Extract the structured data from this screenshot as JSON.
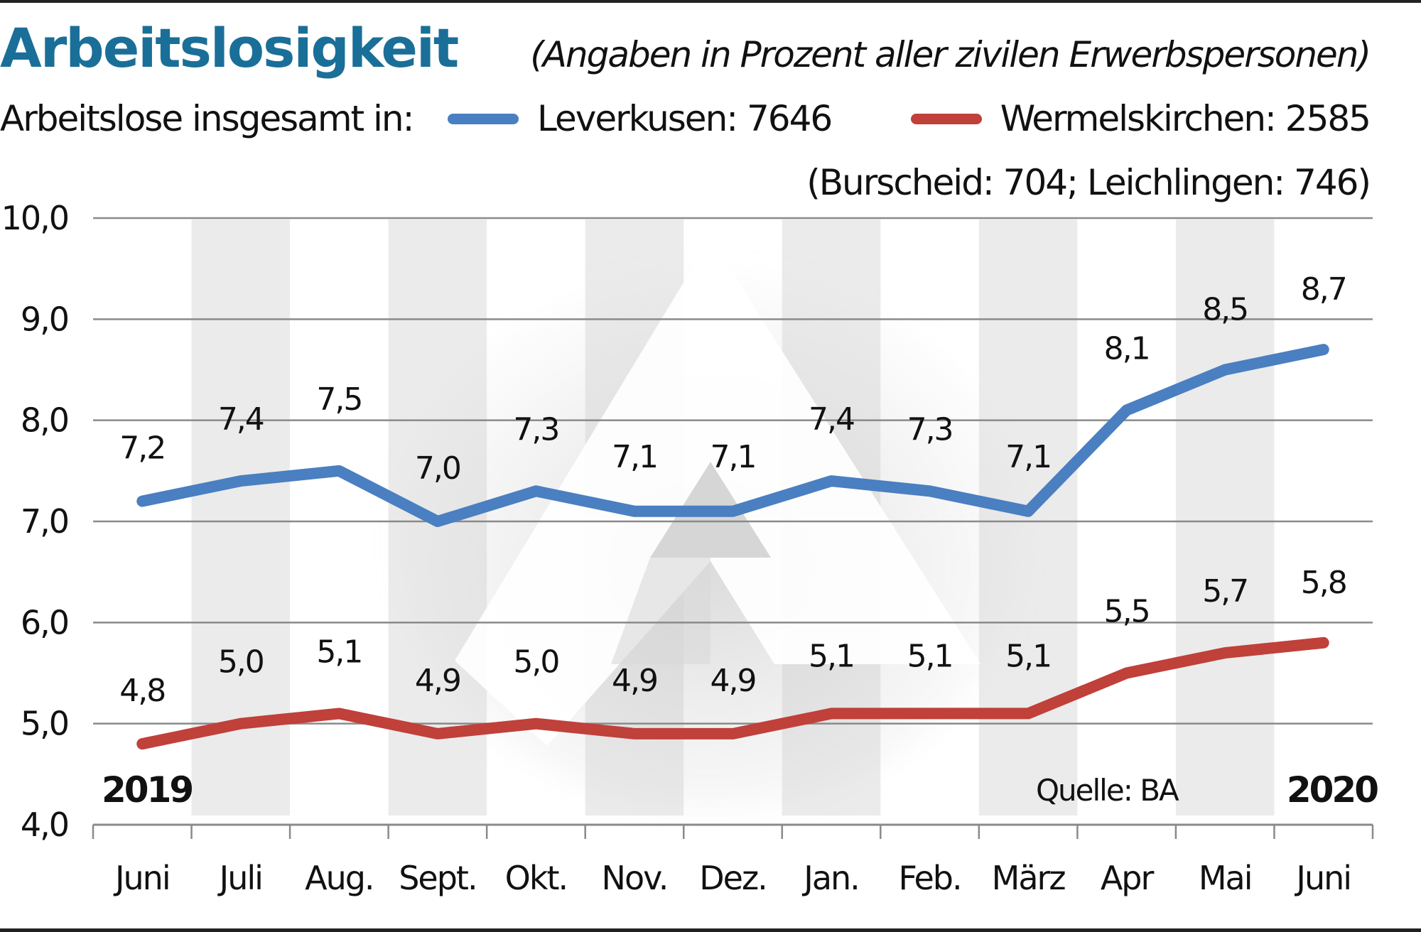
{
  "header": {
    "title": "Arbeitslosigkeit",
    "subtitle": "(Angaben in Prozent aller zivilen Erwerbspersonen)"
  },
  "legend": {
    "intro": "Arbeitslose insgesamt in:",
    "items": [
      {
        "label": "Leverkusen: 7646",
        "color": "#4a7fc1"
      },
      {
        "label": "Wermelskirchen: 2585",
        "color": "#c0403a"
      }
    ],
    "note": "(Burscheid: 704; Leichlingen: 746)"
  },
  "footer": {
    "year_start": "2019",
    "year_end": "2020",
    "source": "Quelle: BA"
  },
  "chart_data": {
    "type": "line",
    "title": "Arbeitslosigkeit",
    "subtitle": "(Angaben in Prozent aller zivilen Erwerbspersonen)",
    "xlabel": "",
    "ylabel": "",
    "categories": [
      "Juni",
      "Juli",
      "Aug.",
      "Sept.",
      "Okt.",
      "Nov.",
      "Dez.",
      "Jan.",
      "Feb.",
      "März",
      "Apr",
      "Mai",
      "Juni"
    ],
    "ylim": [
      4.0,
      10.0
    ],
    "yticks": [
      4.0,
      5.0,
      6.0,
      7.0,
      8.0,
      9.0,
      10.0
    ],
    "ytick_labels": [
      "4,0",
      "5,0",
      "6,0",
      "7,0",
      "8,0",
      "9,0",
      "10,0"
    ],
    "grid": true,
    "legend_position": "top",
    "series": [
      {
        "name": "Leverkusen",
        "total": 7646,
        "color": "#4a7fc1",
        "values": [
          7.2,
          7.4,
          7.5,
          7.0,
          7.3,
          7.1,
          7.1,
          7.4,
          7.3,
          7.1,
          8.1,
          8.5,
          8.7
        ],
        "labels": [
          "7,2",
          "7,4",
          "7,5",
          "7,0",
          "7,3",
          "7,1",
          "7,1",
          "7,4",
          "7,3",
          "7,1",
          "8,1",
          "8,5",
          "8,7"
        ]
      },
      {
        "name": "Wermelskirchen",
        "total": 2585,
        "color": "#c0403a",
        "values": [
          4.8,
          5.0,
          5.1,
          4.9,
          5.0,
          4.9,
          4.9,
          5.1,
          5.1,
          5.1,
          5.5,
          5.7,
          5.8
        ],
        "labels": [
          "4,8",
          "5,0",
          "5,1",
          "4,9",
          "5,0",
          "4,9",
          "4,9",
          "5,1",
          "5,1",
          "5,1",
          "5,5",
          "5,7",
          "5,8"
        ]
      }
    ],
    "annotations": [
      "2019",
      "2020",
      "Quelle: BA",
      "(Burscheid: 704; Leichlingen: 746)"
    ]
  }
}
